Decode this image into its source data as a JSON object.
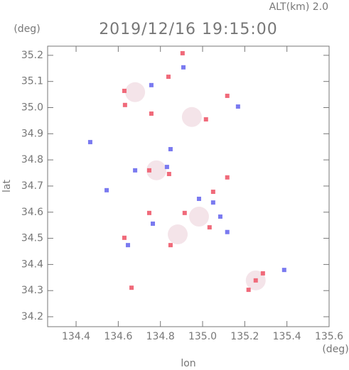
{
  "chart_data": {
    "type": "scatter",
    "title": "2019/12/16 19:15:00",
    "subtitle": "ALT(km) 2.0",
    "xlabel": "lon",
    "ylabel": "lat",
    "xunit": "(deg)",
    "yunit": "(deg)",
    "xlim": [
      134.265,
      135.6
    ],
    "ylim": [
      34.162,
      35.235
    ],
    "xticks": [
      134.4,
      134.6,
      134.8,
      {
        "value": 135,
        "label": "135.0"
      },
      135.2,
      135.4,
      135.6
    ],
    "yticks": [
      34.2,
      34.3,
      34.4,
      34.5,
      34.6,
      34.7,
      34.8,
      34.9,
      {
        "value": 35,
        "label": "35.0"
      },
      35.1,
      35.2
    ],
    "series": [
      {
        "color": "#f1dde3",
        "x": [
          134.882,
          134.781,
          135.252,
          134.949,
          134.68,
          134.983
        ],
        "y": [
          34.515,
          34.76,
          34.339,
          34.964,
          35.059,
          34.583
        ]
      },
      {
        "color": "#f06a7a",
        "x": [
          134.905,
          134.629,
          134.838,
          135.117,
          134.632,
          134.757,
          135.016,
          134.747,
          134.841,
          135.05,
          134.747,
          134.915,
          135.033,
          134.629,
          134.848,
          135.252,
          135.218,
          135.286,
          134.663,
          135.117
        ],
        "y": [
          35.208,
          35.064,
          35.118,
          35.045,
          35.01,
          34.977,
          34.955,
          34.76,
          34.746,
          34.678,
          34.597,
          34.597,
          34.542,
          34.502,
          34.474,
          34.339,
          34.303,
          34.366,
          34.311,
          34.733
        ]
      },
      {
        "color": "#7a7af0",
        "x": [
          134.467,
          134.68,
          134.831,
          134.909,
          134.757,
          135.168,
          135.05,
          135.084,
          134.646,
          134.764,
          135.387,
          134.848,
          134.983,
          134.545,
          135.117
        ],
        "y": [
          34.868,
          34.76,
          34.773,
          35.154,
          35.086,
          35.004,
          34.637,
          34.583,
          34.474,
          34.556,
          34.379,
          34.841,
          34.651,
          34.684,
          34.524
        ]
      }
    ]
  }
}
